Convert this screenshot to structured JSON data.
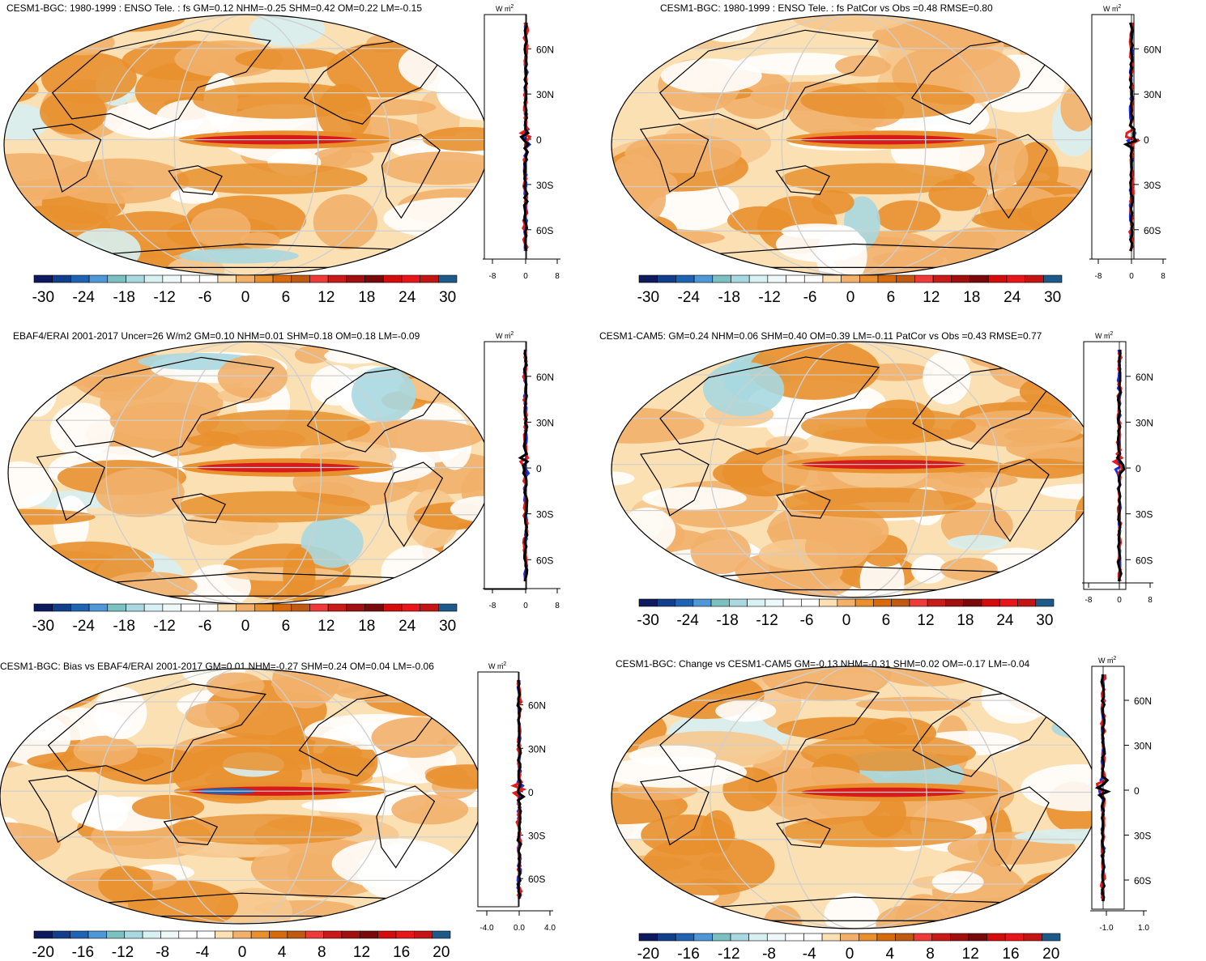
{
  "palettes": {
    "diverging": [
      "#0d1b5e",
      "#123f8c",
      "#1f63b3",
      "#4f97d6",
      "#7cc0c2",
      "#a8d8e0",
      "#d7f0f2",
      "#eef8f8",
      "#ffffff",
      "#ffffff",
      "#fbe0b4",
      "#f2b06a",
      "#e8902e",
      "#d86a0e",
      "#c05a12",
      "#ef3a3a",
      "#c91a1a",
      "#a10f0f",
      "#7a0a0a",
      "#d40c0c",
      "#e8151a",
      "#c41414",
      "#1d5a8a"
    ],
    "profile_colors": {
      "blue": "#1f2fe0",
      "red": "#e81a1a",
      "black": "#000000"
    }
  },
  "panels": [
    {
      "title": "CESM1-BGC: 1980-1999 : ENSO Tele. : fs GM=0.12 NHM=-0.25 SHM=0.42 OM=0.22 LM=-0.15",
      "colorbar_labels": [
        "-30",
        "-24",
        "-18",
        "-12",
        "-6",
        "0",
        "6",
        "12",
        "18",
        "24",
        "30"
      ],
      "profile": {
        "units": "W m",
        "units_sup": "-2",
        "x_ticks": [
          "-8",
          "0",
          "8"
        ],
        "y_ticks": [
          "60N",
          "30N",
          "0",
          "30S",
          "60S"
        ]
      }
    },
    {
      "title": "CESM1-BGC: 1980-1999 : ENSO Tele. : fs PatCor vs Obs =0.48 RMSE=0.80",
      "colorbar_labels": [
        "-30",
        "-24",
        "-18",
        "-12",
        "-6",
        "0",
        "6",
        "12",
        "18",
        "24",
        "30"
      ],
      "profile": {
        "units": "W m",
        "units_sup": "-2",
        "x_ticks": [
          "-8",
          "0",
          "8"
        ],
        "y_ticks": [
          "60N",
          "30N",
          "0",
          "30S",
          "60S"
        ]
      }
    },
    {
      "title": "EBAF4/ERAI 2001-2017 Uncer=26 W/m2 GM=0.10 NHM=0.01 SHM=0.18 OM=0.18 LM=-0.09",
      "colorbar_labels": [
        "-30",
        "-24",
        "-18",
        "-12",
        "-6",
        "0",
        "6",
        "12",
        "18",
        "24",
        "30"
      ],
      "profile": {
        "units": "W m",
        "units_sup": "-2",
        "x_ticks": [
          "-8",
          "0",
          "8"
        ],
        "y_ticks": [
          "60N",
          "30N",
          "0",
          "30S",
          "60S"
        ]
      }
    },
    {
      "title": "CESM1-CAM5: GM=0.24 NHM=0.06 SHM=0.40 OM=0.39 LM=-0.11 PatCor vs Obs =0.43 RMSE=0.77",
      "colorbar_labels": [
        "-30",
        "-24",
        "-18",
        "-12",
        "-6",
        "0",
        "6",
        "12",
        "18",
        "24",
        "30"
      ],
      "profile": {
        "units": "W m",
        "units_sup": "-2",
        "x_ticks": [
          "-8",
          "0",
          "8"
        ],
        "y_ticks": [
          "60N",
          "30N",
          "0",
          "30S",
          "60S"
        ]
      }
    },
    {
      "title": "CESM1-BGC: Bias vs EBAF4/ERAI 2001-2017 GM=0.01 NHM=-0.27 SHM=0.24 OM=0.04 LM=-0.06",
      "colorbar_labels": [
        "-20",
        "-16",
        "-12",
        "-8",
        "-4",
        "0",
        "4",
        "8",
        "12",
        "16",
        "20"
      ],
      "profile": {
        "units": "W m",
        "units_sup": "-2",
        "x_ticks": [
          "-4.0",
          "0.0",
          "4.0"
        ],
        "y_ticks": [
          "60N",
          "30N",
          "0",
          "30S",
          "60S"
        ]
      }
    },
    {
      "title": "CESM1-BGC: Change vs CESM1-CAM5 GM=-0.13 NHM=-0.31 SHM=0.02 OM=-0.17 LM=-0.04",
      "colorbar_labels": [
        "-20",
        "-16",
        "-12",
        "-8",
        "-4",
        "0",
        "4",
        "8",
        "12",
        "16",
        "20"
      ],
      "profile": {
        "units": "W m",
        "units_sup": "-2",
        "x_ticks": [
          "-1.0",
          "1.0"
        ],
        "y_ticks": [
          "60N",
          "30N",
          "0",
          "30S",
          "60S"
        ]
      }
    }
  ],
  "chart_data": [
    {
      "type": "heatmap",
      "title": "CESM1-BGC: 1980-1999 : ENSO Tele. : fs GM=0.12 NHM=-0.25 SHM=0.42 OM=0.22 LM=-0.15",
      "colorbar": {
        "min": -30,
        "max": 30,
        "ticks": [
          -30,
          -24,
          -18,
          -12,
          -6,
          0,
          6,
          12,
          18,
          24,
          30
        ]
      }
    },
    {
      "type": "heatmap",
      "title": "CESM1-BGC: 1980-1999 : ENSO Tele. : fs PatCor vs Obs =0.48 RMSE=0.80",
      "colorbar": {
        "min": -30,
        "max": 30,
        "ticks": [
          -30,
          -24,
          -18,
          -12,
          -6,
          0,
          6,
          12,
          18,
          24,
          30
        ]
      }
    },
    {
      "type": "heatmap",
      "title": "EBAF4/ERAI 2001-2017 Uncer=26 W/m2 GM=0.10 NHM=0.01 SHM=0.18 OM=0.18 LM=-0.09",
      "colorbar": {
        "min": -30,
        "max": 30,
        "ticks": [
          -30,
          -24,
          -18,
          -12,
          -6,
          0,
          6,
          12,
          18,
          24,
          30
        ]
      }
    },
    {
      "type": "heatmap",
      "title": "CESM1-CAM5: GM=0.24 NHM=0.06 SHM=0.40 OM=0.39 LM=-0.11 PatCor vs Obs =0.43 RMSE=0.77",
      "colorbar": {
        "min": -30,
        "max": 30,
        "ticks": [
          -30,
          -24,
          -18,
          -12,
          -6,
          0,
          6,
          12,
          18,
          24,
          30
        ]
      }
    },
    {
      "type": "heatmap",
      "title": "CESM1-BGC: Bias vs EBAF4/ERAI 2001-2017 GM=0.01 NHM=-0.27 SHM=0.24 OM=0.04 LM=-0.06",
      "colorbar": {
        "min": -20,
        "max": 20,
        "ticks": [
          -20,
          -16,
          -12,
          -8,
          -4,
          0,
          4,
          8,
          12,
          16,
          20
        ]
      }
    },
    {
      "type": "heatmap",
      "title": "CESM1-BGC: Change vs CESM1-CAM5 GM=-0.13 NHM=-0.31 SHM=0.02 OM=-0.17 LM=-0.04",
      "colorbar": {
        "min": -20,
        "max": 20,
        "ticks": [
          -20,
          -16,
          -12,
          -8,
          -4,
          0,
          4,
          8,
          12,
          16,
          20
        ]
      }
    }
  ]
}
